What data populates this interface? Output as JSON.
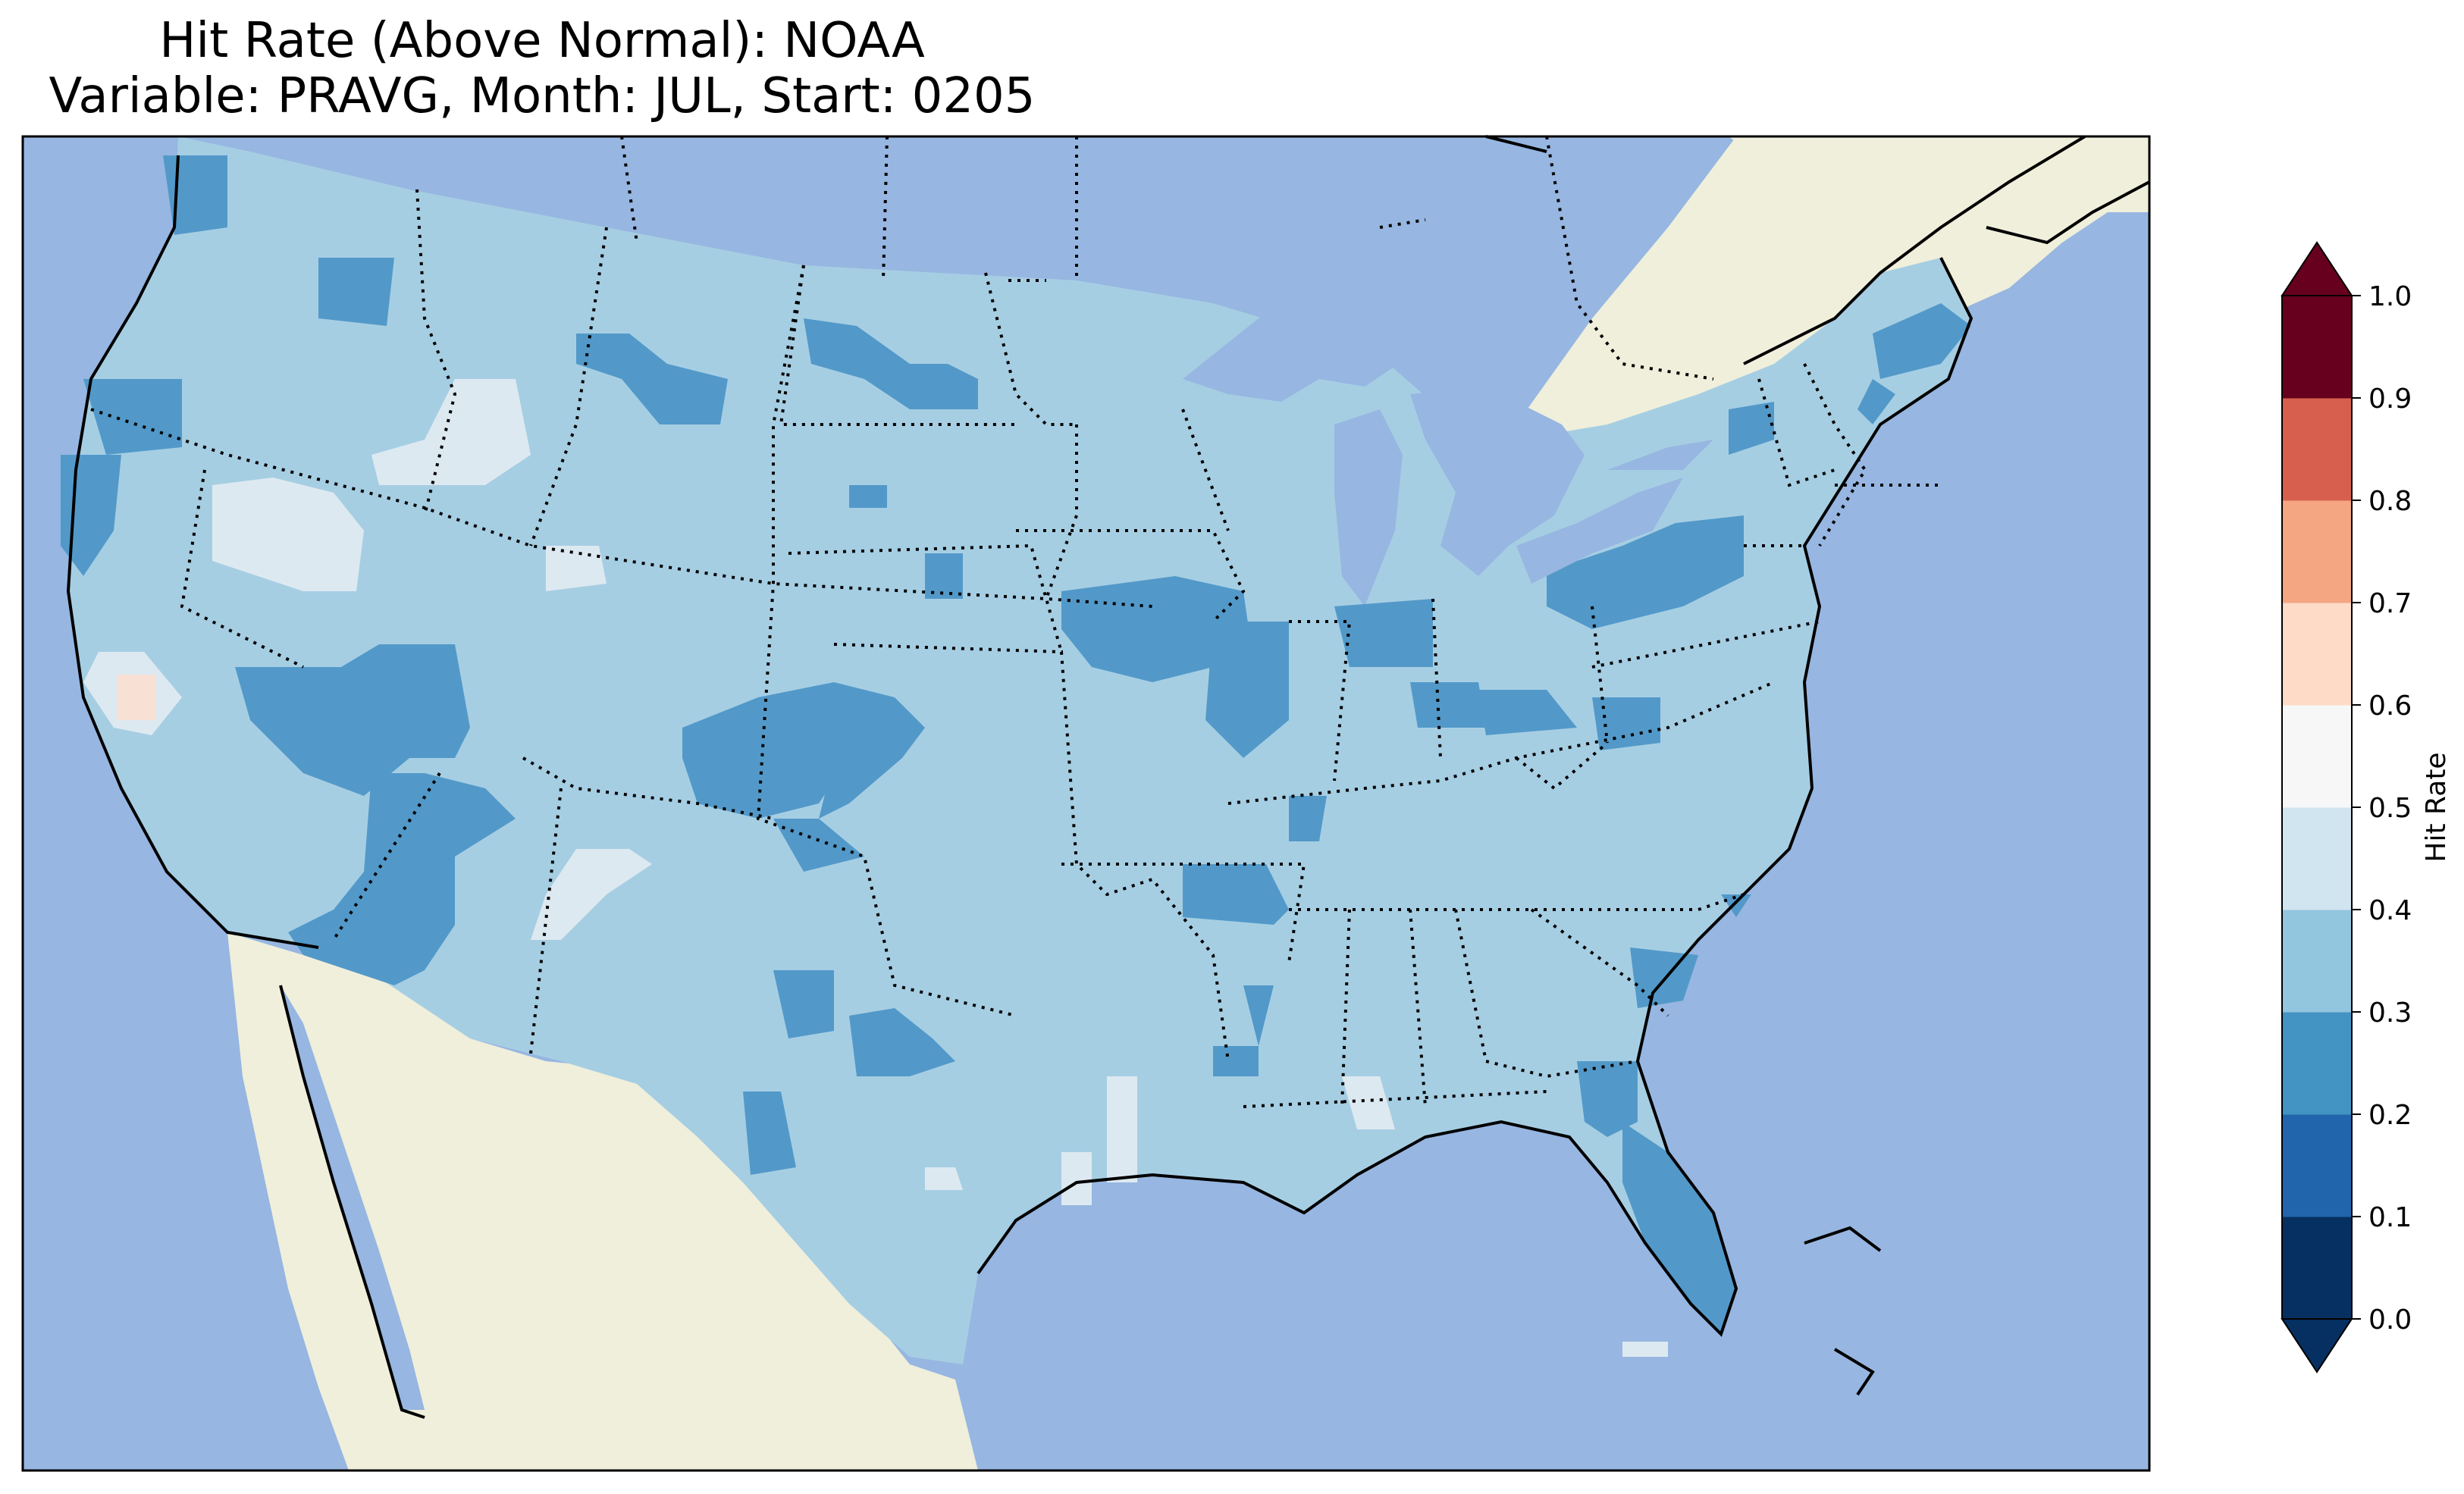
{
  "title": {
    "line1": "Hit Rate (Above Normal): NOAA",
    "line2": "Variable: PRAVG, Month: JUL, Start: 0205"
  },
  "colorbar": {
    "label": "Hit Rate",
    "ticks": [
      "0.0",
      "0.1",
      "0.2",
      "0.3",
      "0.4",
      "0.5",
      "0.6",
      "0.7",
      "0.8",
      "0.9",
      "1.0"
    ],
    "colors": [
      "#053061",
      "#2166ac",
      "#4393c3",
      "#92c5de",
      "#d1e5f0",
      "#f7f7f7",
      "#fddbc7",
      "#f4a582",
      "#d6604d",
      "#b2182b",
      "#67001f"
    ],
    "extend_colors": {
      "under": "#053061",
      "over": "#67001f"
    }
  },
  "map_colors": {
    "ocean": "#97b6e1",
    "land": "#efefdb",
    "class_0_3_0_4": "#a6cee3",
    "class_0_2_0_3": "#5299c9",
    "class_0_4_0_5": "#dde9f1",
    "class_0_5_0_6": "#f8e0d5"
  }
}
